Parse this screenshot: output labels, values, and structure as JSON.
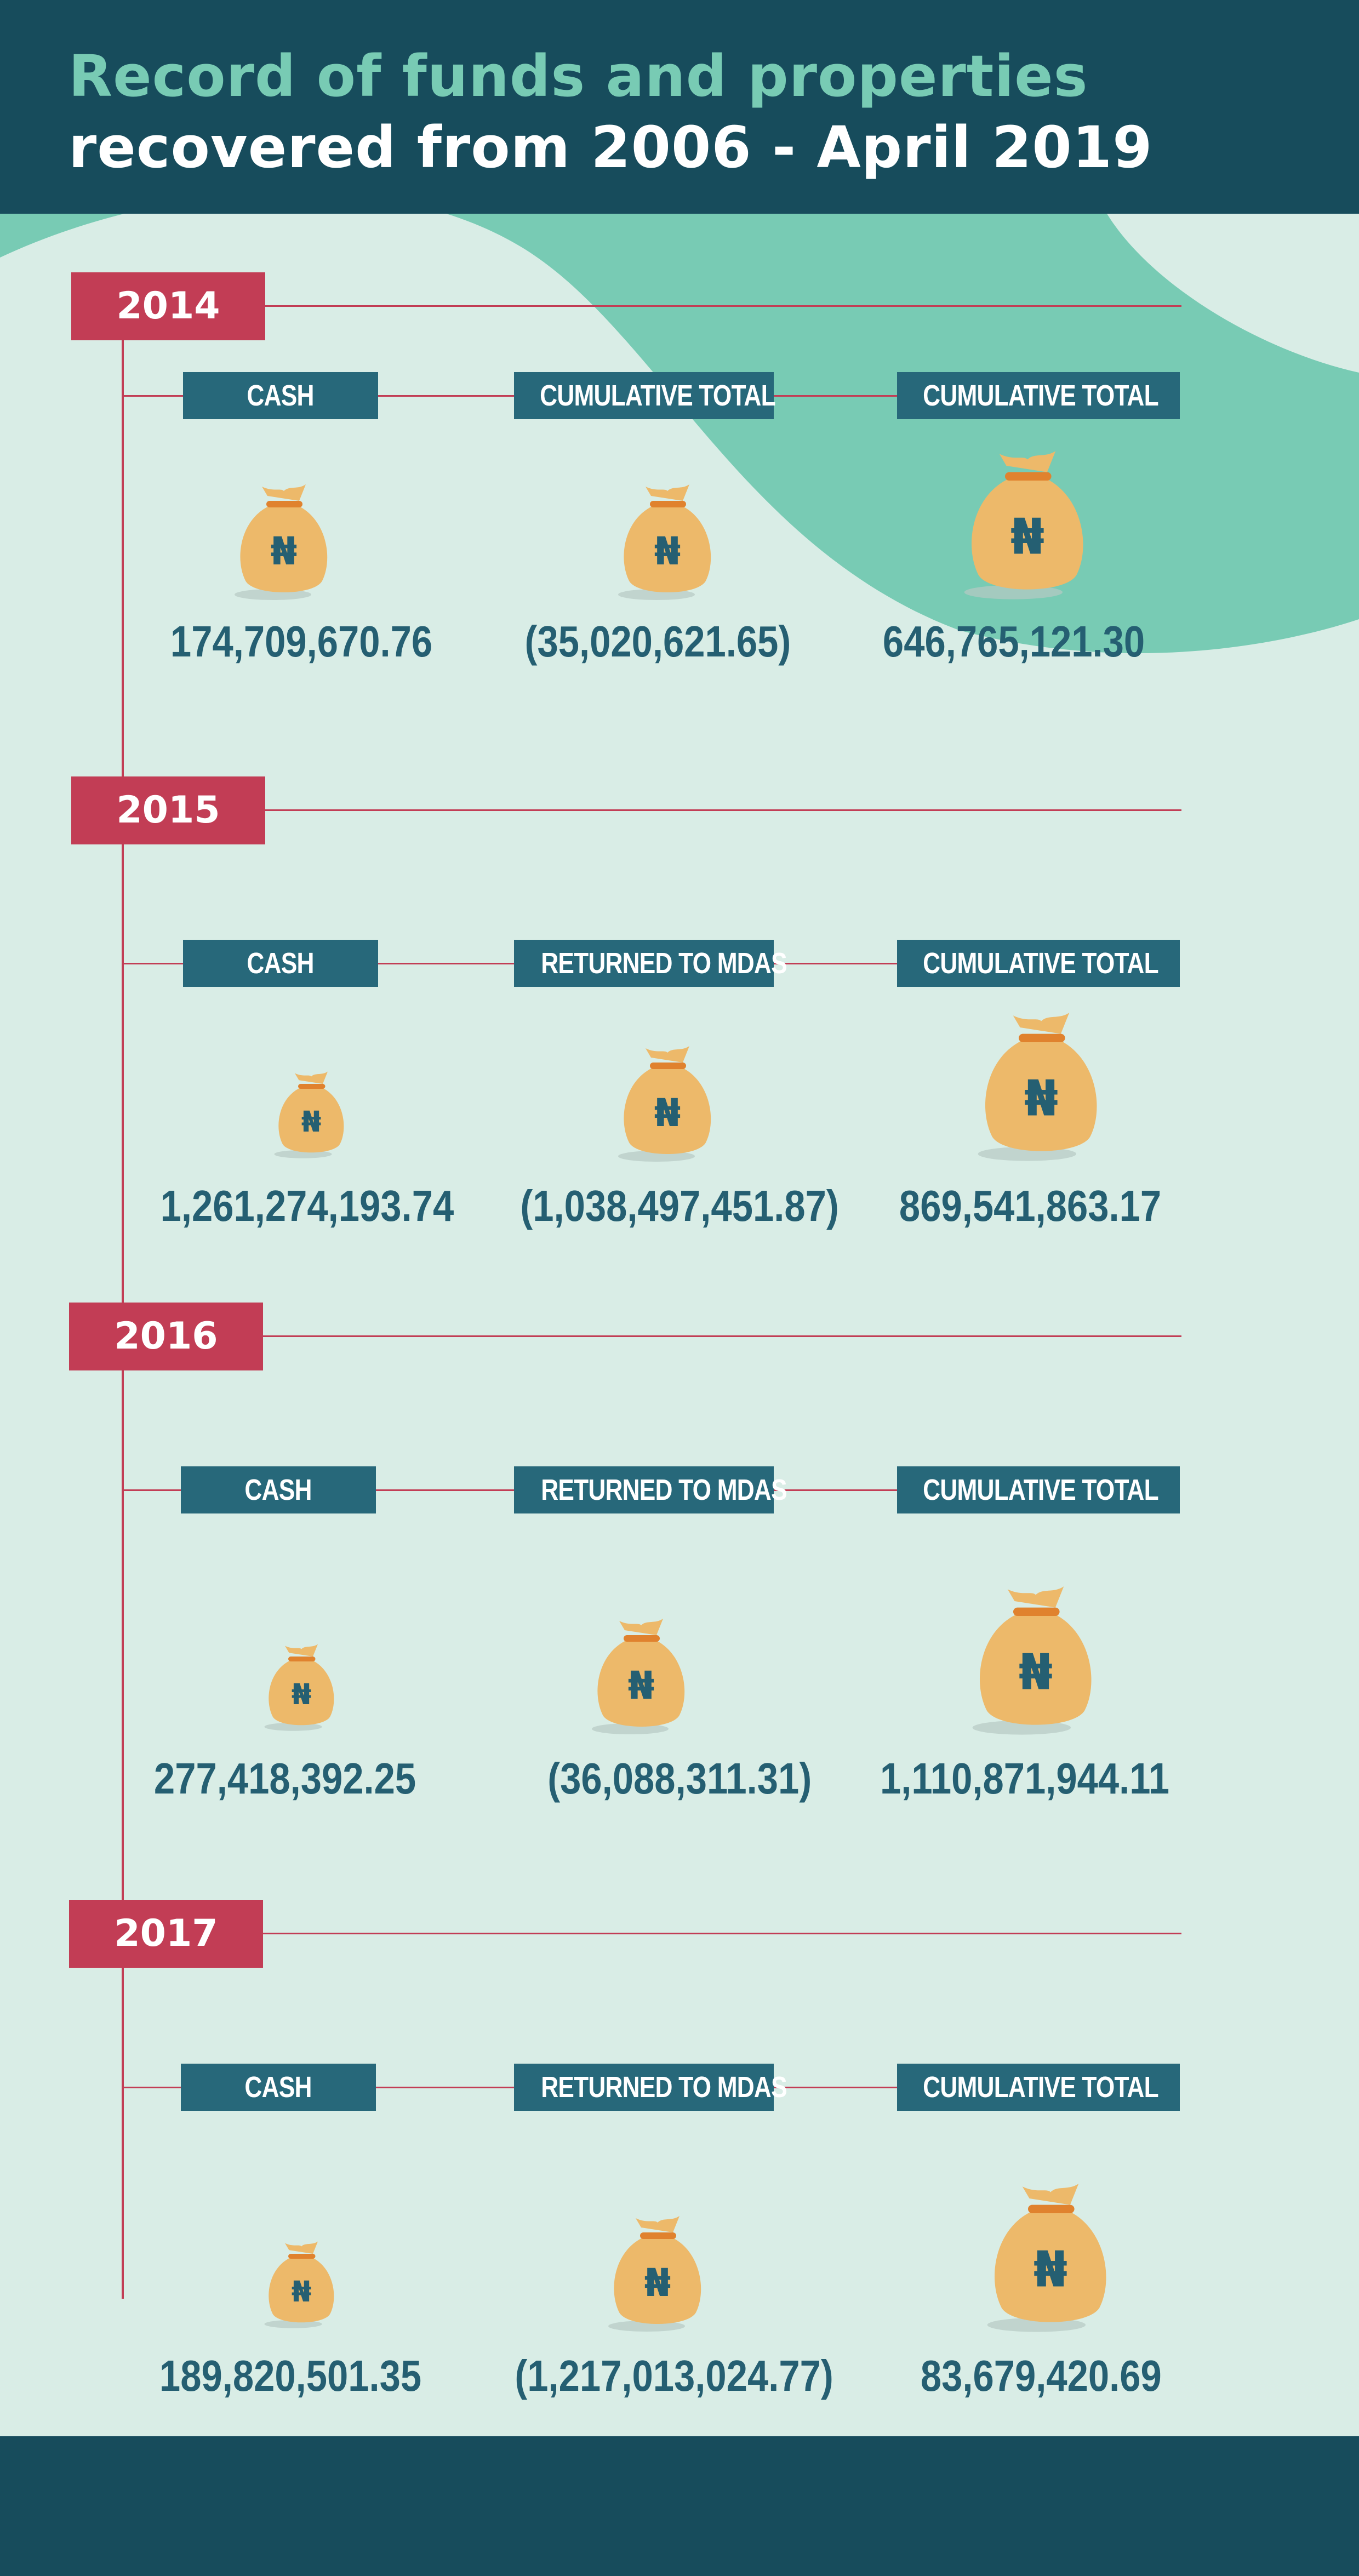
{
  "header": {
    "title_line1": "Record of funds and properties",
    "title_line2": "recovered from 2006 - April 2019"
  },
  "colors": {
    "navy": "#174c5c",
    "mint": "#78cbb4",
    "background": "#d9ede6",
    "crimson": "#c23d55",
    "label_bg": "#27687a",
    "value_text": "#255f72",
    "bag": "#edb96a"
  },
  "icons": {
    "bag": "naira-money-bag-icon"
  },
  "years": [
    {
      "year": "2014",
      "labels": [
        "CASH",
        "CUMULATIVE TOTAL",
        "CUMULATIVE TOTAL"
      ],
      "values": [
        "174,709,670.76",
        "(35,020,621.65)",
        "646,765,121.30"
      ]
    },
    {
      "year": "2015",
      "labels": [
        "CASH",
        "RETURNED TO MDAS",
        "CUMULATIVE TOTAL"
      ],
      "values": [
        "1,261,274,193.74",
        "(1,038,497,451.87)",
        "869,541,863.17"
      ]
    },
    {
      "year": "2016",
      "labels": [
        "CASH",
        "RETURNED TO MDAS",
        "CUMULATIVE TOTAL"
      ],
      "values": [
        "277,418,392.25",
        "(36,088,311.31)",
        "1,110,871,944.11"
      ]
    },
    {
      "year": "2017",
      "labels": [
        "CASH",
        "RETURNED TO MDAS",
        "CUMULATIVE TOTAL"
      ],
      "values": [
        "189,820,501.35",
        "(1,217,013,024.77)",
        "83,679,420.69"
      ]
    }
  ]
}
